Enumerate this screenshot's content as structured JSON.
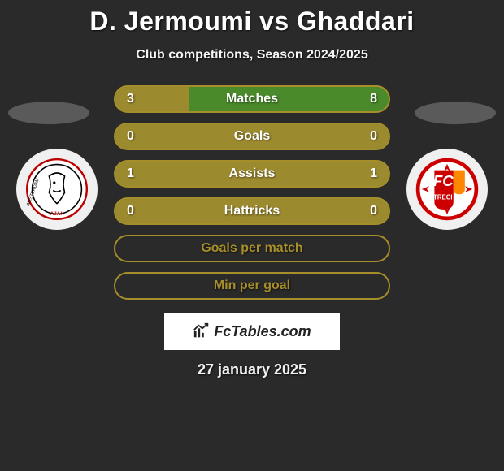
{
  "title": "D. Jermoumi vs Ghaddari",
  "subtitle": "Club competitions, Season 2024/2025",
  "date": "27 january 2025",
  "fctables_label": "FcTables.com",
  "colors": {
    "background": "#2a2a2a",
    "bar_border": "#a68e2a",
    "bar_fill": "#9c8a2f",
    "bar_highlight": "#4a8a2a",
    "text": "#ffffff"
  },
  "bars": [
    {
      "label": "Matches",
      "left": "3",
      "right": "8",
      "left_share": 0.27,
      "has_values": true
    },
    {
      "label": "Goals",
      "left": "0",
      "right": "0",
      "left_share": 0.5,
      "has_values": true
    },
    {
      "label": "Assists",
      "left": "1",
      "right": "1",
      "left_share": 0.5,
      "has_values": true
    },
    {
      "label": "Hattricks",
      "left": "0",
      "right": "0",
      "left_share": 0.5,
      "has_values": true
    },
    {
      "label": "Goals per match",
      "left": "",
      "right": "",
      "left_share": 0,
      "has_values": false
    },
    {
      "label": "Min per goal",
      "left": "",
      "right": "",
      "left_share": 0,
      "has_values": false
    }
  ],
  "crests": {
    "left_name": "ajax-crest",
    "right_name": "utrecht-crest"
  }
}
